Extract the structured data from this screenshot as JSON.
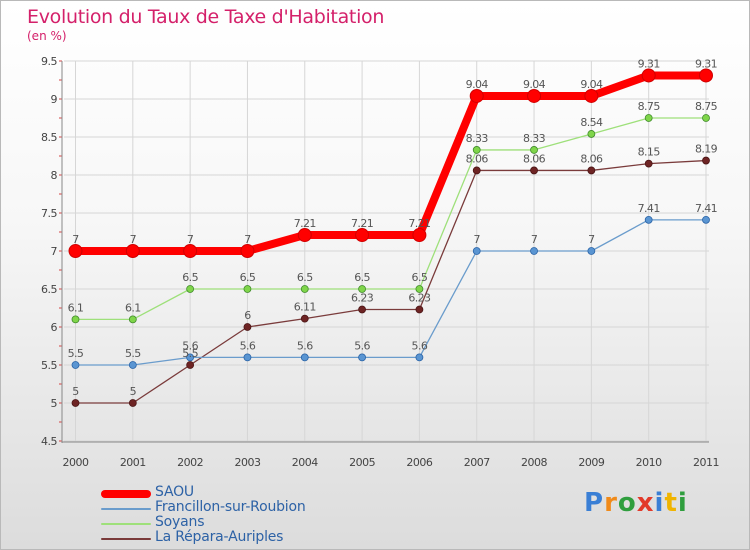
{
  "header": {
    "title": "Evolution du Taux de Taxe d'Habitation",
    "subtitle": "(en %)"
  },
  "brand": {
    "text": "Proxiti",
    "letters": [
      "P",
      "r",
      "o",
      "x",
      "i",
      "t",
      "i"
    ],
    "colors": [
      "#3a7fd5",
      "#f08a1a",
      "#2f9e3e",
      "#e23a2a",
      "#3a7fd5",
      "#f0b400",
      "#2f9e3e"
    ]
  },
  "chart_data": {
    "type": "line",
    "title": "Evolution du Taux de Taxe d'Habitation",
    "subtitle": "(en %)",
    "xlabel": "",
    "ylabel": "",
    "x": [
      "2000",
      "2001",
      "2002",
      "2003",
      "2004",
      "2005",
      "2006",
      "2007",
      "2008",
      "2009",
      "2010",
      "2011"
    ],
    "ylim": [
      4.5,
      9.5
    ],
    "yticks": [
      4.5,
      5,
      5.5,
      6,
      6.5,
      7,
      7.5,
      8,
      8.5,
      9,
      9.5
    ],
    "grid": true,
    "legend_position": "bottom-left",
    "series": [
      {
        "name": "SAOU",
        "color": "#ff0000",
        "values": [
          7,
          7,
          7,
          7,
          7.21,
          7.21,
          7.21,
          9.04,
          9.04,
          9.04,
          9.31,
          9.31
        ],
        "labels": [
          "7",
          "7",
          "7",
          "7",
          "7.21",
          "7.21",
          "7.21",
          "9.04",
          "9.04",
          "9.04",
          "9.31",
          "9.31"
        ]
      },
      {
        "name": "Francillon-sur-Roubion",
        "color": "#6a9ccc",
        "values": [
          5.5,
          5.5,
          5.6,
          5.6,
          5.6,
          5.6,
          5.6,
          7,
          7,
          7,
          7.41,
          7.41
        ],
        "labels": [
          "5.5",
          "5.5",
          "5.6",
          "5.6",
          "5.6",
          "5.6",
          "5.6",
          "7",
          "7",
          "7",
          "7.41",
          "7.41"
        ]
      },
      {
        "name": "Soyans",
        "color": "#9ee07a",
        "values": [
          6.1,
          6.1,
          6.5,
          6.5,
          6.5,
          6.5,
          6.5,
          8.33,
          8.33,
          8.54,
          8.75,
          8.75
        ],
        "labels": [
          "6.1",
          "6.1",
          "6.5",
          "6.5",
          "6.5",
          "6.5",
          "6.5",
          "8.33",
          "8.33",
          "8.54",
          "8.75",
          "8.75"
        ]
      },
      {
        "name": "La Répara-Auriples",
        "color": "#7a3b3b",
        "values": [
          5,
          5,
          5.5,
          6,
          6.11,
          6.23,
          6.23,
          8.06,
          8.06,
          8.06,
          8.15,
          8.19
        ],
        "labels": [
          "5",
          "5",
          "5.5",
          "6",
          "6.11",
          "6.23",
          "6.23",
          "8.06",
          "8.06",
          "8.06",
          "8.15",
          "8.19"
        ]
      }
    ]
  }
}
